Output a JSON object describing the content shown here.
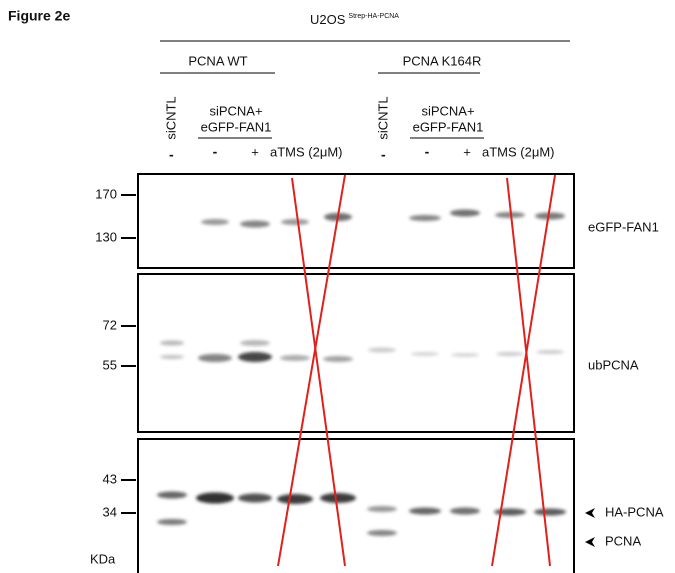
{
  "figure_label": "Figure 2e",
  "cell_line": {
    "name": "U2OS",
    "superscript": "Strep-HA-PCNA"
  },
  "groups": [
    {
      "label": "PCNA WT",
      "control": "siCNTL",
      "control_sign": "-",
      "treatment_line1": "siPCNA+",
      "treatment_line2": "eGFP-FAN1",
      "minus": "-",
      "plus": "+",
      "inhibitor": "aTMS (2μM)"
    },
    {
      "label": "PCNA K164R",
      "control": "siCNTL",
      "control_sign": "-",
      "treatment_line1": "siPCNA+",
      "treatment_line2": "eGFP-FAN1",
      "minus": "-",
      "plus": "+",
      "inhibitor": "aTMS (2μM)"
    }
  ],
  "panels": [
    {
      "labels": [
        "eGFP-FAN1"
      ],
      "markers": [
        170,
        130
      ]
    },
    {
      "labels": [
        "ubPCNA"
      ],
      "markers": [
        72,
        55
      ]
    },
    {
      "labels": [
        "HA-PCNA",
        "PCNA"
      ],
      "markers": [
        43,
        34
      ]
    }
  ],
  "unit": "KDa"
}
